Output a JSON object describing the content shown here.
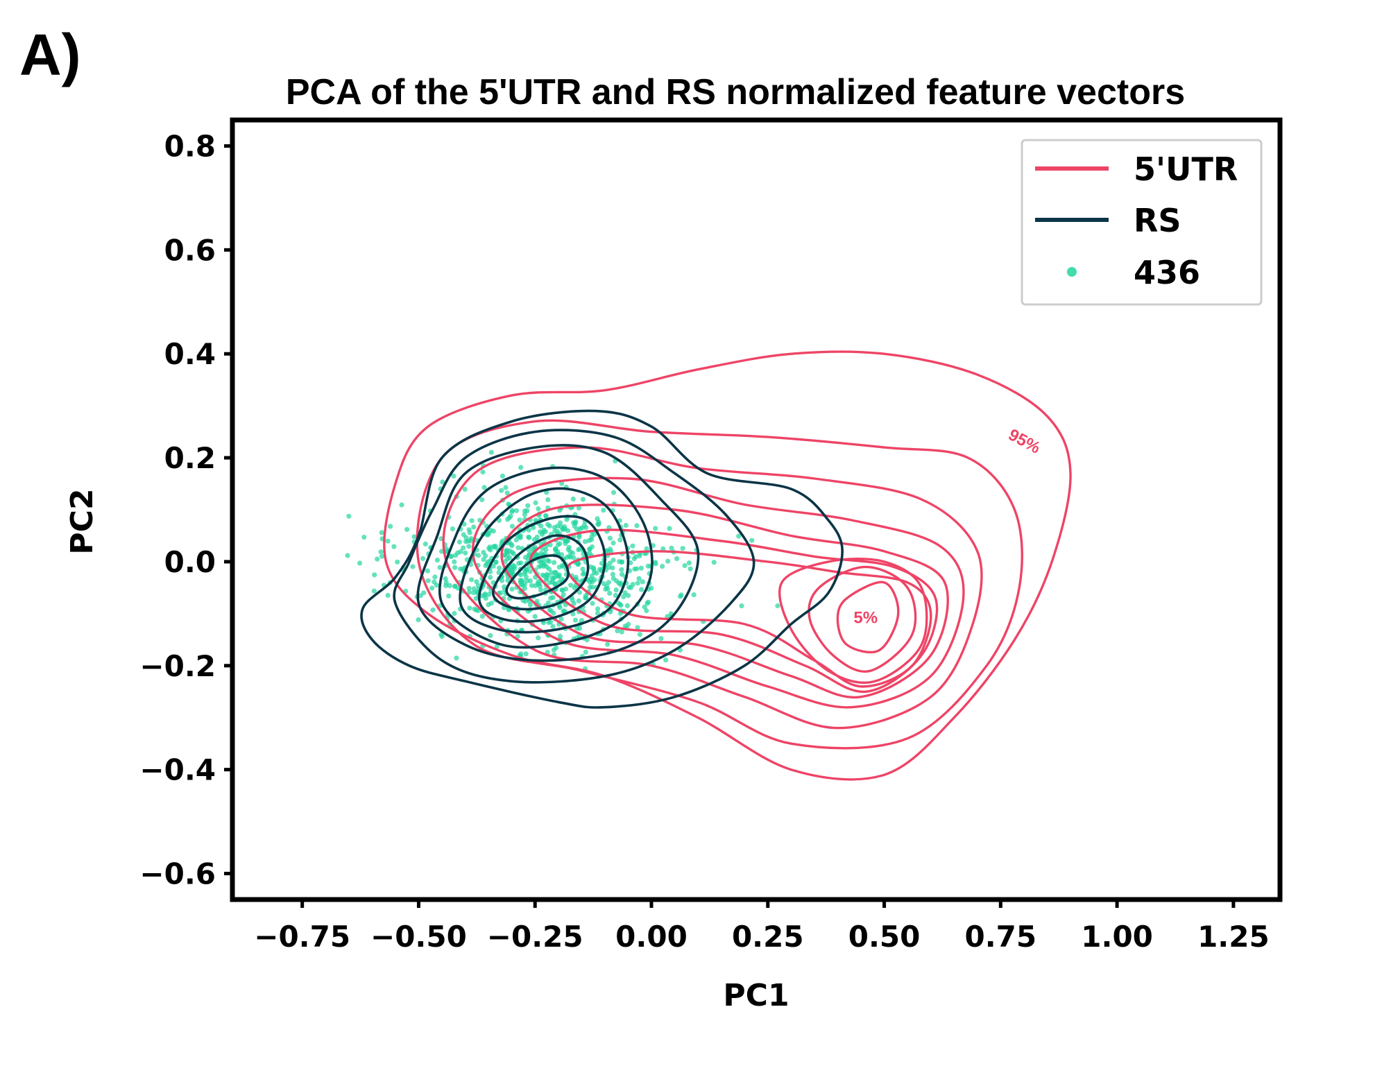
{
  "panel_label": "A)",
  "chart_data": {
    "type": "scatter",
    "title": "PCA of the 5'UTR and RS normalized feature vectors",
    "xlabel": "PC1",
    "ylabel": "PC2",
    "xlim": [
      -0.9,
      1.35
    ],
    "ylim": [
      -0.65,
      0.85
    ],
    "x_ticks": [
      -0.75,
      -0.5,
      -0.25,
      0.0,
      0.25,
      0.5,
      0.75,
      1.0,
      1.25
    ],
    "x_tick_labels": [
      "−0.75",
      "−0.50",
      "−0.25",
      "0.00",
      "0.25",
      "0.50",
      "0.75",
      "1.00",
      "1.25"
    ],
    "y_ticks": [
      0.8,
      0.6,
      0.4,
      0.2,
      0.0,
      -0.2,
      -0.4,
      -0.6
    ],
    "y_tick_labels": [
      "0.8",
      "0.6",
      "0.4",
      "0.2",
      "0.0",
      "−0.2",
      "−0.4",
      "−0.6"
    ],
    "grid": false,
    "legend_position": "top-right",
    "series": [
      {
        "name": "5'UTR",
        "kind": "kde-contour",
        "color": "#ee4466",
        "contour_labels": [
          {
            "text": "95%",
            "x": 0.8,
            "y": 0.23,
            "angle": 28
          },
          {
            "text": "5%",
            "x": 0.46,
            "y": -0.11,
            "angle": 0
          }
        ],
        "contours": [
          [
            [
              -0.57,
              0.0
            ],
            [
              -0.55,
              0.15
            ],
            [
              -0.48,
              0.26
            ],
            [
              -0.3,
              0.32
            ],
            [
              -0.1,
              0.33
            ],
            [
              0.1,
              0.37
            ],
            [
              0.3,
              0.4
            ],
            [
              0.5,
              0.4
            ],
            [
              0.7,
              0.36
            ],
            [
              0.85,
              0.28
            ],
            [
              0.9,
              0.17
            ],
            [
              0.86,
              0.0
            ],
            [
              0.78,
              -0.15
            ],
            [
              0.65,
              -0.3
            ],
            [
              0.5,
              -0.41
            ],
            [
              0.3,
              -0.4
            ],
            [
              0.1,
              -0.3
            ],
            [
              -0.1,
              -0.22
            ],
            [
              -0.3,
              -0.18
            ],
            [
              -0.48,
              -0.1
            ]
          ],
          [
            [
              -0.5,
              0.0
            ],
            [
              -0.45,
              0.2
            ],
            [
              -0.25,
              0.27
            ],
            [
              0.0,
              0.25
            ],
            [
              0.25,
              0.24
            ],
            [
              0.5,
              0.22
            ],
            [
              0.68,
              0.2
            ],
            [
              0.78,
              0.1
            ],
            [
              0.79,
              -0.05
            ],
            [
              0.72,
              -0.2
            ],
            [
              0.55,
              -0.34
            ],
            [
              0.3,
              -0.35
            ],
            [
              0.1,
              -0.27
            ],
            [
              -0.15,
              -0.21
            ],
            [
              -0.38,
              -0.16
            ]
          ],
          [
            [
              -0.44,
              0.0
            ],
            [
              -0.38,
              0.17
            ],
            [
              -0.15,
              0.22
            ],
            [
              0.1,
              0.18
            ],
            [
              0.35,
              0.16
            ],
            [
              0.58,
              0.12
            ],
            [
              0.7,
              0.02
            ],
            [
              0.69,
              -0.12
            ],
            [
              0.6,
              -0.26
            ],
            [
              0.4,
              -0.32
            ],
            [
              0.2,
              -0.26
            ],
            [
              0.0,
              -0.2
            ],
            [
              -0.25,
              -0.17
            ]
          ],
          [
            [
              -0.38,
              0.0
            ],
            [
              -0.3,
              0.13
            ],
            [
              -0.05,
              0.16
            ],
            [
              0.2,
              0.11
            ],
            [
              0.43,
              0.08
            ],
            [
              0.62,
              0.03
            ],
            [
              0.67,
              -0.07
            ],
            [
              0.6,
              -0.22
            ],
            [
              0.43,
              -0.28
            ],
            [
              0.25,
              -0.24
            ],
            [
              0.05,
              -0.18
            ],
            [
              -0.2,
              -0.15
            ]
          ],
          [
            [
              -0.32,
              0.0
            ],
            [
              -0.22,
              0.1
            ],
            [
              0.05,
              0.1
            ],
            [
              0.3,
              0.05
            ],
            [
              0.5,
              0.02
            ],
            [
              0.63,
              -0.04
            ],
            [
              0.6,
              -0.18
            ],
            [
              0.45,
              -0.26
            ],
            [
              0.3,
              -0.22
            ],
            [
              0.1,
              -0.16
            ],
            [
              -0.15,
              -0.14
            ]
          ],
          [
            [
              -0.26,
              0.0
            ],
            [
              -0.12,
              0.06
            ],
            [
              0.15,
              0.04
            ],
            [
              0.35,
              0.01
            ],
            [
              0.52,
              -0.01
            ],
            [
              0.61,
              -0.07
            ],
            [
              0.58,
              -0.18
            ],
            [
              0.46,
              -0.25
            ],
            [
              0.33,
              -0.2
            ],
            [
              0.15,
              -0.14
            ],
            [
              -0.1,
              -0.12
            ]
          ],
          [
            [
              -0.18,
              -0.01
            ],
            [
              0.0,
              0.02
            ],
            [
              0.25,
              0.0
            ],
            [
              0.4,
              -0.02
            ],
            [
              0.55,
              -0.04
            ],
            [
              0.6,
              -0.1
            ],
            [
              0.56,
              -0.2
            ],
            [
              0.45,
              -0.24
            ],
            [
              0.35,
              -0.19
            ],
            [
              0.2,
              -0.12
            ],
            [
              -0.05,
              -0.1
            ]
          ],
          [
            [
              0.28,
              -0.04
            ],
            [
              0.38,
              0.0
            ],
            [
              0.5,
              0.0
            ],
            [
              0.58,
              -0.05
            ],
            [
              0.58,
              -0.16
            ],
            [
              0.48,
              -0.23
            ],
            [
              0.38,
              -0.21
            ],
            [
              0.3,
              -0.13
            ]
          ],
          [
            [
              0.36,
              -0.05
            ],
            [
              0.46,
              -0.01
            ],
            [
              0.55,
              -0.05
            ],
            [
              0.56,
              -0.14
            ],
            [
              0.47,
              -0.21
            ],
            [
              0.39,
              -0.18
            ],
            [
              0.34,
              -0.11
            ]
          ],
          [
            [
              0.42,
              -0.07
            ],
            [
              0.5,
              -0.04
            ],
            [
              0.53,
              -0.1
            ],
            [
              0.49,
              -0.17
            ],
            [
              0.42,
              -0.16
            ],
            [
              0.4,
              -0.11
            ]
          ]
        ]
      },
      {
        "name": "RS",
        "kind": "kde-contour",
        "color": "#0b3547",
        "contours": [
          [
            [
              -0.62,
              -0.09
            ],
            [
              -0.55,
              -0.03
            ],
            [
              -0.5,
              0.05
            ],
            [
              -0.45,
              0.2
            ],
            [
              -0.3,
              0.27
            ],
            [
              -0.12,
              0.29
            ],
            [
              0.0,
              0.26
            ],
            [
              0.12,
              0.17
            ],
            [
              0.3,
              0.14
            ],
            [
              0.38,
              0.08
            ],
            [
              0.41,
              0.02
            ],
            [
              0.38,
              -0.06
            ],
            [
              0.3,
              -0.12
            ],
            [
              0.2,
              -0.2
            ],
            [
              0.05,
              -0.26
            ],
            [
              -0.1,
              -0.28
            ],
            [
              -0.2,
              -0.27
            ],
            [
              -0.4,
              -0.23
            ],
            [
              -0.52,
              -0.2
            ],
            [
              -0.6,
              -0.15
            ]
          ],
          [
            [
              -0.55,
              -0.08
            ],
            [
              -0.52,
              0.0
            ],
            [
              -0.47,
              0.1
            ],
            [
              -0.4,
              0.2
            ],
            [
              -0.25,
              0.25
            ],
            [
              -0.08,
              0.24
            ],
            [
              0.05,
              0.17
            ],
            [
              0.16,
              0.09
            ],
            [
              0.22,
              0.0
            ],
            [
              0.17,
              -0.08
            ],
            [
              0.05,
              -0.17
            ],
            [
              -0.1,
              -0.22
            ],
            [
              -0.3,
              -0.23
            ],
            [
              -0.45,
              -0.19
            ]
          ],
          [
            [
              -0.5,
              -0.08
            ],
            [
              -0.46,
              0.05
            ],
            [
              -0.4,
              0.17
            ],
            [
              -0.25,
              0.22
            ],
            [
              -0.1,
              0.21
            ],
            [
              0.02,
              0.12
            ],
            [
              0.1,
              0.02
            ],
            [
              0.05,
              -0.1
            ],
            [
              -0.07,
              -0.17
            ],
            [
              -0.25,
              -0.19
            ],
            [
              -0.4,
              -0.16
            ]
          ],
          [
            [
              -0.45,
              -0.08
            ],
            [
              -0.42,
              0.05
            ],
            [
              -0.35,
              0.14
            ],
            [
              -0.22,
              0.18
            ],
            [
              -0.1,
              0.16
            ],
            [
              -0.02,
              0.08
            ],
            [
              0.0,
              -0.02
            ],
            [
              -0.05,
              -0.1
            ],
            [
              -0.16,
              -0.15
            ],
            [
              -0.32,
              -0.16
            ]
          ],
          [
            [
              -0.41,
              -0.08
            ],
            [
              -0.37,
              0.04
            ],
            [
              -0.28,
              0.12
            ],
            [
              -0.18,
              0.14
            ],
            [
              -0.09,
              0.1
            ],
            [
              -0.05,
              0.0
            ],
            [
              -0.09,
              -0.09
            ],
            [
              -0.2,
              -0.13
            ],
            [
              -0.33,
              -0.13
            ]
          ],
          [
            [
              -0.37,
              -0.07
            ],
            [
              -0.32,
              0.03
            ],
            [
              -0.23,
              0.08
            ],
            [
              -0.14,
              0.08
            ],
            [
              -0.1,
              0.01
            ],
            [
              -0.13,
              -0.07
            ],
            [
              -0.22,
              -0.11
            ],
            [
              -0.32,
              -0.11
            ]
          ],
          [
            [
              -0.34,
              -0.06
            ],
            [
              -0.29,
              0.01
            ],
            [
              -0.21,
              0.05
            ],
            [
              -0.15,
              0.03
            ],
            [
              -0.14,
              -0.03
            ],
            [
              -0.2,
              -0.08
            ],
            [
              -0.29,
              -0.09
            ]
          ],
          [
            [
              -0.31,
              -0.05
            ],
            [
              -0.26,
              0.0
            ],
            [
              -0.2,
              0.01
            ],
            [
              -0.18,
              -0.03
            ],
            [
              -0.23,
              -0.06
            ],
            [
              -0.29,
              -0.07
            ]
          ]
        ]
      },
      {
        "name": "436",
        "kind": "points",
        "color": "#22d6a0",
        "n_points": 850
      }
    ]
  },
  "legend": {
    "items": [
      {
        "label": "5'UTR",
        "color": "#ee4466",
        "style": "line"
      },
      {
        "label": "RS",
        "color": "#0b3547",
        "style": "line"
      },
      {
        "label": "436",
        "color": "#22d6a0",
        "style": "marker"
      }
    ]
  }
}
